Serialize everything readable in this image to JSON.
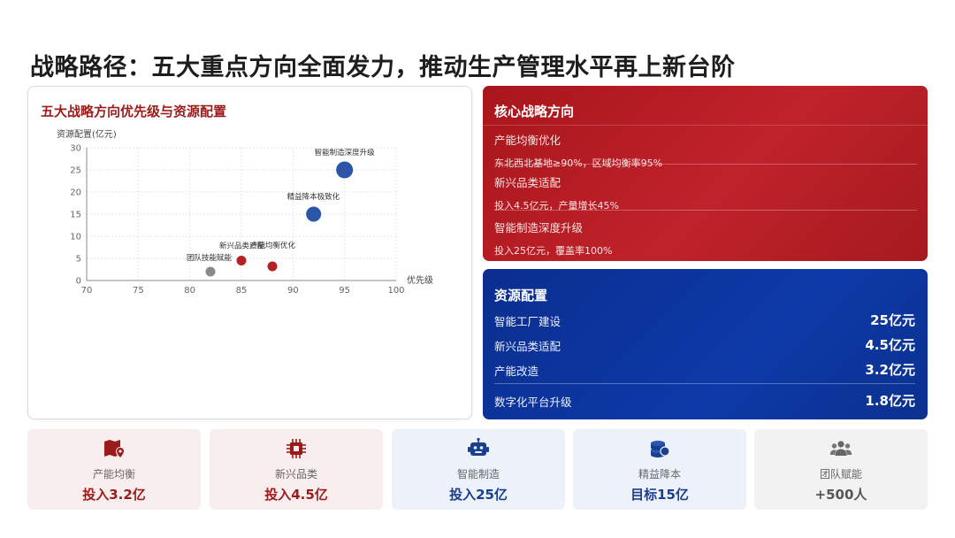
{
  "title": "战略路径：五大重点方向全面发力，推动生产管理水平再上新台阶",
  "chart_card": {
    "title": "五大战略方向优先级与资源配置"
  },
  "chart_data": {
    "type": "scatter",
    "title": "五大战略方向优先级与资源配置",
    "xlabel": "优先级",
    "ylabel": "资源配置(亿元)",
    "xlim": [
      70,
      100
    ],
    "ylim": [
      0,
      30
    ],
    "xticks": [
      "70",
      "75",
      "80",
      "85",
      "90",
      "95",
      "100"
    ],
    "yticks": [
      "0",
      "5",
      "10",
      "15",
      "20",
      "25",
      "30"
    ],
    "grid": true,
    "points": [
      {
        "label": "团队技能赋能",
        "x": 82,
        "y": 2,
        "color": "#8a8a8a",
        "size": "small"
      },
      {
        "label": "新兴品类适配",
        "x": 85,
        "y": 4.5,
        "color": "#b52025",
        "size": "small"
      },
      {
        "label": "产能均衡优化",
        "x": 88,
        "y": 3.2,
        "color": "#b52025",
        "size": "small"
      },
      {
        "label": "精益降本极致化",
        "x": 92,
        "y": 15,
        "color": "#2a55a8",
        "size": "medium"
      },
      {
        "label": "智能制造深度升级",
        "x": 95,
        "y": 25,
        "color": "#2a55a8",
        "size": "large"
      }
    ]
  },
  "core_panel": {
    "header": "核心战略方向",
    "items": [
      {
        "title": "产能均衡优化",
        "desc": "东北西北基地≥90%，区域均衡率95%"
      },
      {
        "title": "新兴品类适配",
        "desc": "投入4.5亿元，产量增长45%"
      },
      {
        "title": "智能制造深度升级",
        "desc": "投入25亿元，覆盖率100%"
      }
    ]
  },
  "resource_panel": {
    "header": "资源配置",
    "rows": [
      {
        "label": "智能工厂建设",
        "value": "25亿元"
      },
      {
        "label": "新兴品类适配",
        "value": "4.5亿元"
      },
      {
        "label": "产能改造",
        "value": "3.2亿元"
      },
      {
        "label": "数字化平台升级",
        "value": "1.8亿元"
      }
    ]
  },
  "stat_cards": [
    {
      "icon": "map-pin-icon",
      "label": "产能均衡",
      "value": "投入3.2亿",
      "bg": "#f8eeee",
      "color": "#9b1b1b"
    },
    {
      "icon": "chip-icon",
      "label": "新兴品类",
      "value": "投入4.5亿",
      "bg": "#f8eeee",
      "color": "#9b1b1b"
    },
    {
      "icon": "robot-icon",
      "label": "智能制造",
      "value": "投入25亿",
      "bg": "#edf2fa",
      "color": "#1b3f8f"
    },
    {
      "icon": "coins-icon",
      "label": "精益降本",
      "value": "目标15亿",
      "bg": "#edf2fa",
      "color": "#1b3f8f"
    },
    {
      "icon": "users-icon",
      "label": "团队赋能",
      "value": "+500人",
      "bg": "#f2f2f2",
      "color": "#555555"
    }
  ]
}
